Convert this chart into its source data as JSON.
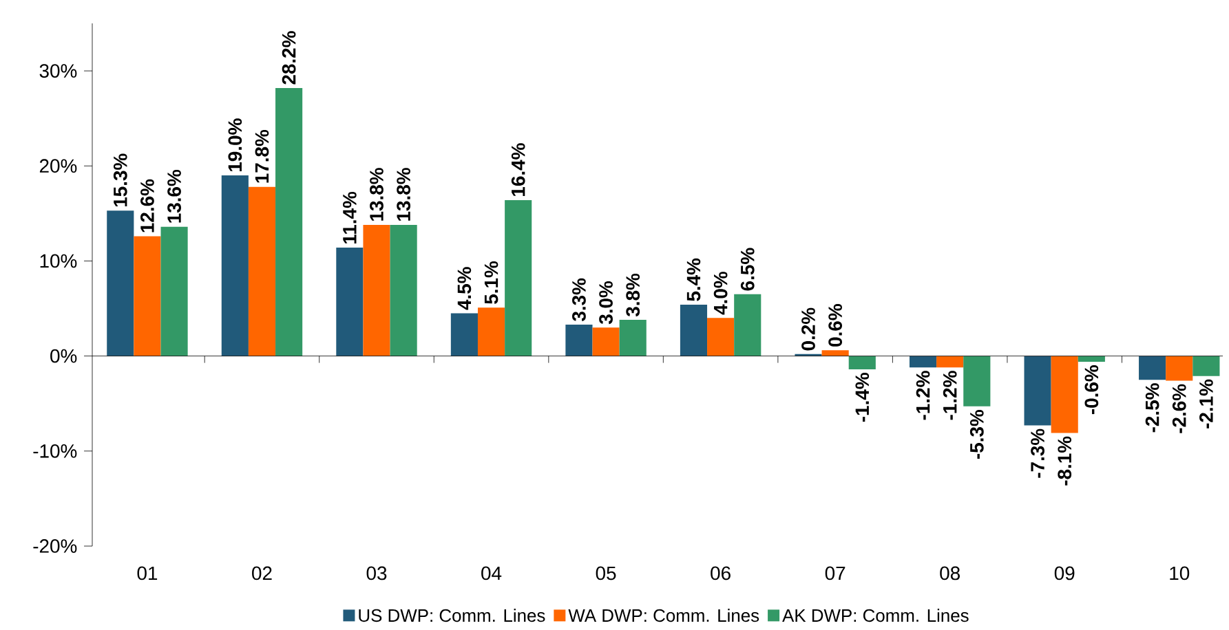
{
  "chart_data": {
    "type": "bar",
    "categories": [
      "01",
      "02",
      "03",
      "04",
      "05",
      "06",
      "07",
      "08",
      "09",
      "10"
    ],
    "series": [
      {
        "name": "US DWP: Comm. Lines",
        "color": "#215a7a",
        "values": [
          15.3,
          19.0,
          11.4,
          4.5,
          3.3,
          5.4,
          0.2,
          -1.2,
          -7.3,
          -2.5
        ],
        "value_labels": [
          "15.3%",
          "19.0%",
          "11.4%",
          "4.5%",
          "3.3%",
          "5.4%",
          "0.2%",
          "-1.2%",
          "-7.3%",
          "-2.5%"
        ]
      },
      {
        "name": "WA DWP: Comm. Lines",
        "color": "#ff6600",
        "values": [
          12.6,
          17.8,
          13.8,
          5.1,
          3.0,
          4.0,
          0.6,
          -1.2,
          -8.1,
          -2.6
        ],
        "value_labels": [
          "12.6%",
          "17.8%",
          "13.8%",
          "5.1%",
          "3.0%",
          "4.0%",
          "0.6%",
          "-1.2%",
          "-8.1%",
          "-2.6%"
        ]
      },
      {
        "name": "AK DWP: Comm. Lines",
        "color": "#339966",
        "values": [
          13.6,
          28.2,
          13.8,
          16.4,
          3.8,
          6.5,
          -1.4,
          -5.3,
          -0.6,
          -2.1
        ],
        "value_labels": [
          "13.6%",
          "28.2%",
          "13.8%",
          "16.4%",
          "3.8%",
          "6.5%",
          "-1.4%",
          "-5.3%",
          "-0.6%",
          "-2.1%"
        ]
      }
    ],
    "ylim": [
      -20,
      35
    ],
    "yticks": [
      {
        "value": -20,
        "label": "-20%"
      },
      {
        "value": -10,
        "label": "-10%"
      },
      {
        "value": 0,
        "label": "0%"
      },
      {
        "value": 10,
        "label": "10%"
      },
      {
        "value": 20,
        "label": "20%"
      },
      {
        "value": 30,
        "label": "30%"
      }
    ],
    "legend": "bottom"
  }
}
